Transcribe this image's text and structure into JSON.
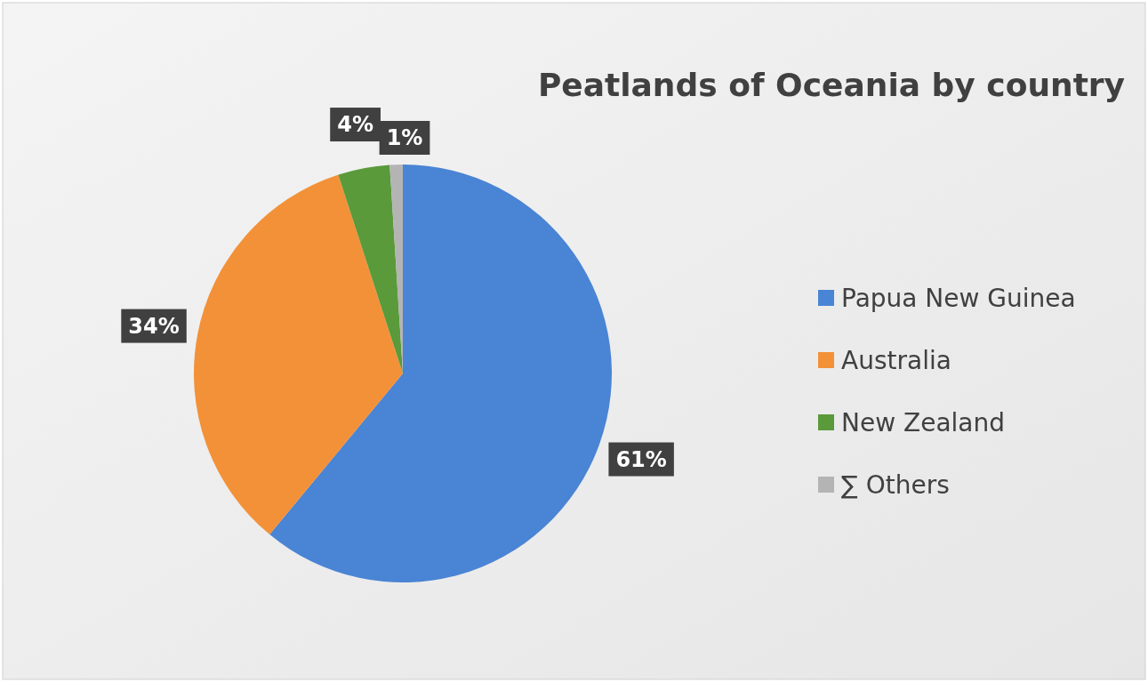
{
  "chart_data": {
    "type": "pie",
    "title": "Peatlands of Oceania by country",
    "categories": [
      "Papua New Guinea",
      "Australia",
      "New Zealand",
      "∑ Others"
    ],
    "values": [
      61,
      34,
      4,
      1
    ],
    "colors": [
      "#4a84d4",
      "#f39138",
      "#5a9a3a",
      "#b4b4b4"
    ],
    "value_labels": [
      "61%",
      "34%",
      "4%",
      "1%"
    ],
    "legend": "right"
  }
}
